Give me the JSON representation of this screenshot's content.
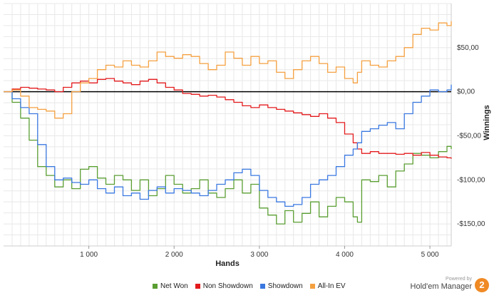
{
  "chart_data": {
    "type": "line",
    "xlabel": "Hands",
    "ylabel": "Winnings",
    "xlim": [
      0,
      5250
    ],
    "ylim": [
      -175,
      100
    ],
    "x_ticks": [
      1000,
      2000,
      3000,
      4000,
      5000
    ],
    "x_tick_labels": [
      "1 000",
      "2 000",
      "3 000",
      "4 000",
      "5 000"
    ],
    "y_ticks": [
      50,
      0,
      -50,
      -100,
      -150
    ],
    "y_tick_labels": [
      "$50,00",
      "$0,00",
      "-$50,00",
      "-$100,00",
      "-$150,00"
    ],
    "grid": true,
    "zero_line": true,
    "legend_position": "bottom",
    "series": [
      {
        "name": "Net Won",
        "color": "#5a9e32",
        "points": [
          [
            0,
            0
          ],
          [
            100,
            -12
          ],
          [
            200,
            -30
          ],
          [
            300,
            -55
          ],
          [
            400,
            -85
          ],
          [
            500,
            -95
          ],
          [
            600,
            -108
          ],
          [
            700,
            -100
          ],
          [
            800,
            -110
          ],
          [
            900,
            -88
          ],
          [
            1000,
            -85
          ],
          [
            1100,
            -98
          ],
          [
            1200,
            -105
          ],
          [
            1300,
            -95
          ],
          [
            1400,
            -100
          ],
          [
            1500,
            -112
          ],
          [
            1600,
            -100
          ],
          [
            1700,
            -118
          ],
          [
            1800,
            -110
          ],
          [
            1900,
            -95
          ],
          [
            2000,
            -105
          ],
          [
            2100,
            -115
          ],
          [
            2200,
            -110
          ],
          [
            2300,
            -100
          ],
          [
            2400,
            -115
          ],
          [
            2500,
            -120
          ],
          [
            2600,
            -110
          ],
          [
            2700,
            -100
          ],
          [
            2800,
            -115
          ],
          [
            2900,
            -105
          ],
          [
            3000,
            -132
          ],
          [
            3100,
            -140
          ],
          [
            3200,
            -150
          ],
          [
            3300,
            -135
          ],
          [
            3400,
            -148
          ],
          [
            3500,
            -138
          ],
          [
            3600,
            -125
          ],
          [
            3700,
            -142
          ],
          [
            3800,
            -130
          ],
          [
            3900,
            -120
          ],
          [
            4000,
            -125
          ],
          [
            4100,
            -142
          ],
          [
            4150,
            -148
          ],
          [
            4200,
            -100
          ],
          [
            4300,
            -102
          ],
          [
            4400,
            -95
          ],
          [
            4500,
            -108
          ],
          [
            4600,
            -90
          ],
          [
            4700,
            -82
          ],
          [
            4800,
            -70
          ],
          [
            4900,
            -72
          ],
          [
            5000,
            -75
          ],
          [
            5100,
            -68
          ],
          [
            5200,
            -62
          ],
          [
            5250,
            -65
          ]
        ]
      },
      {
        "name": "Non Showdown",
        "color": "#e31a1c",
        "points": [
          [
            0,
            0
          ],
          [
            100,
            3
          ],
          [
            200,
            5
          ],
          [
            300,
            4
          ],
          [
            400,
            3
          ],
          [
            500,
            2
          ],
          [
            600,
            0
          ],
          [
            700,
            5
          ],
          [
            800,
            10
          ],
          [
            900,
            12
          ],
          [
            1000,
            10
          ],
          [
            1100,
            14
          ],
          [
            1200,
            15
          ],
          [
            1300,
            12
          ],
          [
            1400,
            10
          ],
          [
            1500,
            8
          ],
          [
            1600,
            12
          ],
          [
            1700,
            14
          ],
          [
            1800,
            10
          ],
          [
            1900,
            5
          ],
          [
            2000,
            2
          ],
          [
            2100,
            -2
          ],
          [
            2200,
            -3
          ],
          [
            2300,
            -5
          ],
          [
            2400,
            -4
          ],
          [
            2500,
            -6
          ],
          [
            2600,
            -9
          ],
          [
            2700,
            -12
          ],
          [
            2800,
            -16
          ],
          [
            2900,
            -18
          ],
          [
            3000,
            -15
          ],
          [
            3100,
            -18
          ],
          [
            3200,
            -20
          ],
          [
            3300,
            -22
          ],
          [
            3400,
            -24
          ],
          [
            3500,
            -26
          ],
          [
            3600,
            -28
          ],
          [
            3700,
            -25
          ],
          [
            3800,
            -30
          ],
          [
            3900,
            -35
          ],
          [
            4000,
            -48
          ],
          [
            4100,
            -58
          ],
          [
            4150,
            -65
          ],
          [
            4200,
            -70
          ],
          [
            4300,
            -68
          ],
          [
            4400,
            -70
          ],
          [
            4500,
            -70
          ],
          [
            4600,
            -71
          ],
          [
            4700,
            -70
          ],
          [
            4800,
            -72
          ],
          [
            4900,
            -69
          ],
          [
            5000,
            -72
          ],
          [
            5100,
            -74
          ],
          [
            5200,
            -75
          ],
          [
            5250,
            -76
          ]
        ]
      },
      {
        "name": "Showdown",
        "color": "#3a78e0",
        "points": [
          [
            0,
            0
          ],
          [
            100,
            -8
          ],
          [
            200,
            -18
          ],
          [
            300,
            -25
          ],
          [
            400,
            -60
          ],
          [
            500,
            -85
          ],
          [
            600,
            -100
          ],
          [
            700,
            -98
          ],
          [
            800,
            -103
          ],
          [
            900,
            -105
          ],
          [
            1000,
            -100
          ],
          [
            1100,
            -110
          ],
          [
            1200,
            -115
          ],
          [
            1300,
            -108
          ],
          [
            1400,
            -118
          ],
          [
            1500,
            -115
          ],
          [
            1600,
            -122
          ],
          [
            1700,
            -112
          ],
          [
            1800,
            -108
          ],
          [
            1900,
            -115
          ],
          [
            2000,
            -110
          ],
          [
            2100,
            -112
          ],
          [
            2200,
            -115
          ],
          [
            2300,
            -118
          ],
          [
            2400,
            -112
          ],
          [
            2500,
            -105
          ],
          [
            2600,
            -100
          ],
          [
            2700,
            -92
          ],
          [
            2800,
            -88
          ],
          [
            2900,
            -95
          ],
          [
            3000,
            -112
          ],
          [
            3100,
            -120
          ],
          [
            3200,
            -125
          ],
          [
            3300,
            -130
          ],
          [
            3400,
            -128
          ],
          [
            3500,
            -120
          ],
          [
            3600,
            -105
          ],
          [
            3700,
            -100
          ],
          [
            3800,
            -95
          ],
          [
            3900,
            -85
          ],
          [
            4000,
            -72
          ],
          [
            4100,
            -65
          ],
          [
            4150,
            -58
          ],
          [
            4200,
            -45
          ],
          [
            4300,
            -42
          ],
          [
            4400,
            -38
          ],
          [
            4500,
            -35
          ],
          [
            4600,
            -42
          ],
          [
            4700,
            -25
          ],
          [
            4800,
            -12
          ],
          [
            4900,
            -5
          ],
          [
            5000,
            2
          ],
          [
            5100,
            0
          ],
          [
            5200,
            2
          ],
          [
            5250,
            8
          ]
        ]
      },
      {
        "name": "All-In EV",
        "color": "#f4a040",
        "points": [
          [
            0,
            0
          ],
          [
            100,
            2
          ],
          [
            200,
            -5
          ],
          [
            300,
            -18
          ],
          [
            400,
            -20
          ],
          [
            500,
            -22
          ],
          [
            600,
            -30
          ],
          [
            700,
            -25
          ],
          [
            800,
            0
          ],
          [
            900,
            10
          ],
          [
            1000,
            15
          ],
          [
            1100,
            25
          ],
          [
            1200,
            30
          ],
          [
            1300,
            28
          ],
          [
            1400,
            35
          ],
          [
            1500,
            30
          ],
          [
            1600,
            28
          ],
          [
            1700,
            35
          ],
          [
            1800,
            45
          ],
          [
            1900,
            40
          ],
          [
            2000,
            38
          ],
          [
            2100,
            42
          ],
          [
            2200,
            40
          ],
          [
            2300,
            32
          ],
          [
            2400,
            25
          ],
          [
            2500,
            30
          ],
          [
            2600,
            45
          ],
          [
            2700,
            38
          ],
          [
            2800,
            30
          ],
          [
            2900,
            40
          ],
          [
            3000,
            32
          ],
          [
            3100,
            35
          ],
          [
            3200,
            22
          ],
          [
            3300,
            15
          ],
          [
            3400,
            25
          ],
          [
            3500,
            35
          ],
          [
            3600,
            40
          ],
          [
            3700,
            32
          ],
          [
            3800,
            22
          ],
          [
            3900,
            28
          ],
          [
            4000,
            15
          ],
          [
            4100,
            10
          ],
          [
            4150,
            22
          ],
          [
            4200,
            35
          ],
          [
            4300,
            30
          ],
          [
            4400,
            28
          ],
          [
            4500,
            35
          ],
          [
            4600,
            40
          ],
          [
            4700,
            50
          ],
          [
            4800,
            65
          ],
          [
            4900,
            72
          ],
          [
            5000,
            70
          ],
          [
            5100,
            78
          ],
          [
            5200,
            75
          ],
          [
            5250,
            80
          ]
        ]
      }
    ]
  },
  "brand": {
    "powered_by": "Powered by",
    "name": "Hold'em Manager",
    "logo_digit": "2"
  }
}
